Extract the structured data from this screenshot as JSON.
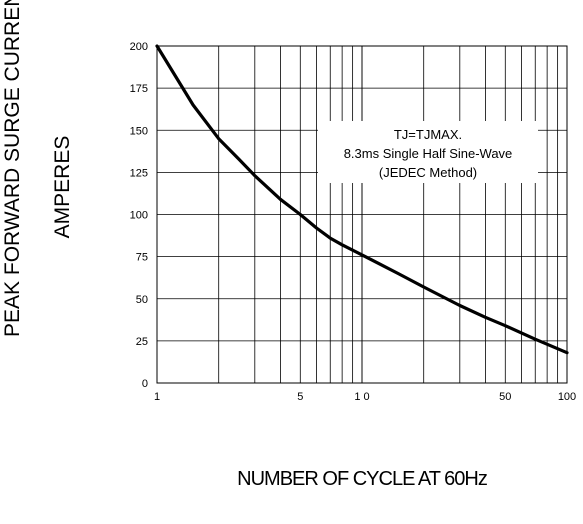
{
  "chart_data": {
    "type": "line",
    "title": "",
    "xlabel": "NUMBER OF CYCLE AT 60Hz",
    "ylabel_lines": [
      "PEAK FORWARD SURGE CURRENT",
      "AMPERES"
    ],
    "x_scale": "log",
    "xlim": [
      1,
      100
    ],
    "ylim": [
      0,
      200
    ],
    "x_ticks": [
      1,
      5,
      10,
      50,
      100
    ],
    "x_tick_labels": [
      "1",
      "5",
      "1 0",
      "50",
      "100"
    ],
    "y_ticks": [
      0,
      25,
      50,
      75,
      100,
      125,
      150,
      175,
      200
    ],
    "y_tick_labels": [
      "0",
      "25",
      "50",
      "75",
      "100",
      "125",
      "150",
      "175",
      "200"
    ],
    "grid": true,
    "series": [
      {
        "x": [
          1,
          1.5,
          2,
          2.5,
          3,
          4,
          5,
          6,
          7,
          8,
          10,
          15,
          20,
          30,
          40,
          50,
          70,
          100
        ],
        "values": [
          200,
          165,
          145,
          133,
          123,
          109,
          100,
          92,
          86,
          82,
          76,
          65,
          57,
          46,
          39,
          34,
          26,
          18
        ]
      }
    ],
    "annotation": [
      "TJ=TJMAX.",
      "8.3ms Single Half Sine-Wave",
      "(JEDEC Method)"
    ]
  }
}
